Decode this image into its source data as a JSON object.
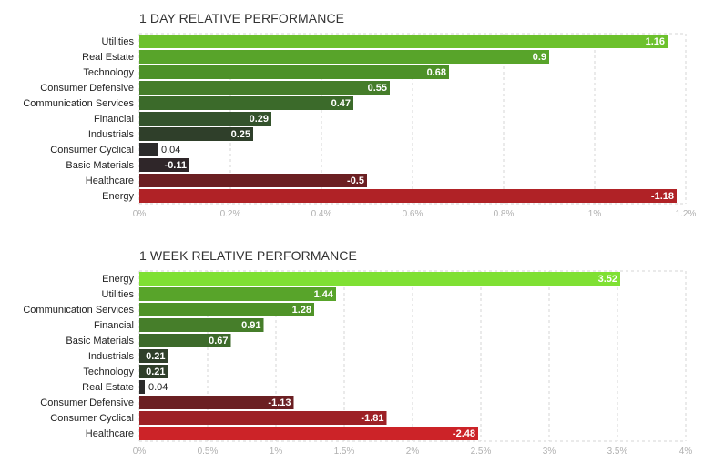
{
  "chart_data": [
    {
      "type": "bar",
      "orientation": "horizontal",
      "title": "1 DAY RELATIVE PERFORMANCE",
      "categories": [
        "Utilities",
        "Real Estate",
        "Technology",
        "Consumer Defensive",
        "Communication Services",
        "Financial",
        "Industrials",
        "Consumer Cyclical",
        "Basic Materials",
        "Healthcare",
        "Energy"
      ],
      "values": [
        1.16,
        0.9,
        0.68,
        0.55,
        0.47,
        0.29,
        0.25,
        0.04,
        -0.11,
        -0.5,
        -1.18
      ],
      "value_labels": [
        "1.16",
        "0.9",
        "0.68",
        "0.55",
        "0.47",
        "0.29",
        "0.25",
        "0.04",
        "-0.11",
        "-0.5",
        "-1.18"
      ],
      "ticks": [
        0,
        0.2,
        0.4,
        0.6,
        0.8,
        1,
        1.2
      ],
      "tick_labels": [
        "0%",
        "0.2%",
        "0.4%",
        "0.6%",
        "0.8%",
        "1%",
        "1.2%"
      ],
      "xlim": [
        0,
        1.2
      ],
      "grid": true,
      "colors": [
        "#6cc12c",
        "#58a42a",
        "#4d9128",
        "#457d2a",
        "#3b6a2a",
        "#34532c",
        "#2f3f2a",
        "#2b2b2b",
        "#2f2629",
        "#6b1f22",
        "#b02226"
      ]
    },
    {
      "type": "bar",
      "orientation": "horizontal",
      "title": "1 WEEK RELATIVE PERFORMANCE",
      "categories": [
        "Energy",
        "Utilities",
        "Communication Services",
        "Financial",
        "Basic Materials",
        "Industrials",
        "Technology",
        "Real Estate",
        "Consumer Defensive",
        "Consumer Cyclical",
        "Healthcare"
      ],
      "values": [
        3.52,
        1.44,
        1.28,
        0.91,
        0.67,
        0.21,
        0.21,
        0.04,
        -1.13,
        -1.81,
        -2.48
      ],
      "value_labels": [
        "3.52",
        "1.44",
        "1.28",
        "0.91",
        "0.67",
        "0.21",
        "0.21",
        "0.04",
        "-1.13",
        "-1.81",
        "-2.48"
      ],
      "ticks": [
        0,
        0.5,
        1,
        1.5,
        2,
        2.5,
        3,
        3.5,
        4
      ],
      "tick_labels": [
        "0%",
        "0.5%",
        "1%",
        "1.5%",
        "2%",
        "2.5%",
        "3%",
        "3.5%",
        "4%"
      ],
      "xlim": [
        0,
        4
      ],
      "grid": true,
      "colors": [
        "#7fe033",
        "#58a42a",
        "#4f9328",
        "#467e2a",
        "#3c6a2a",
        "#2f3f2a",
        "#2f3f2a",
        "#2b2b2b",
        "#6b1f22",
        "#9d2126",
        "#cc2328"
      ]
    }
  ]
}
